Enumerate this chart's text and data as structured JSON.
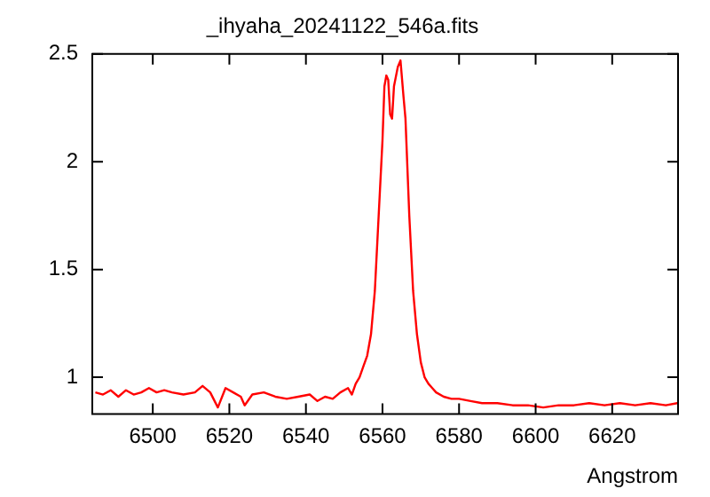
{
  "chart_data": {
    "type": "line",
    "title": "_ihyaha_20241122_546a.fits",
    "xlabel": "Angstrom",
    "series": [
      {
        "color": "#ff0000",
        "x": [
          6485,
          6487,
          6489,
          6491,
          6493,
          6495,
          6497,
          6499,
          6501,
          6503,
          6505,
          6508,
          6511,
          6513,
          6515,
          6517,
          6519,
          6521,
          6523,
          6524,
          6526,
          6529,
          6532,
          6535,
          6538,
          6541,
          6543,
          6545,
          6547,
          6549,
          6551,
          6552,
          6553,
          6554,
          6555,
          6556,
          6557,
          6558,
          6559,
          6560,
          6560.5,
          6561,
          6561.5,
          6562,
          6562.5,
          6563,
          6564,
          6564.7,
          6565.5,
          6566,
          6567,
          6568,
          6569,
          6570,
          6571,
          6572,
          6573,
          6574,
          6576,
          6578,
          6580,
          6583,
          6586,
          6590,
          6594,
          6598,
          6602,
          6606,
          6610,
          6614,
          6618,
          6622,
          6626,
          6630,
          6634,
          6637
        ],
        "values": [
          0.93,
          0.92,
          0.94,
          0.91,
          0.94,
          0.92,
          0.93,
          0.95,
          0.93,
          0.94,
          0.93,
          0.92,
          0.93,
          0.96,
          0.93,
          0.86,
          0.95,
          0.93,
          0.91,
          0.87,
          0.92,
          0.93,
          0.91,
          0.9,
          0.91,
          0.92,
          0.89,
          0.91,
          0.9,
          0.93,
          0.95,
          0.92,
          0.97,
          1.0,
          1.05,
          1.1,
          1.2,
          1.4,
          1.75,
          2.1,
          2.35,
          2.4,
          2.38,
          2.22,
          2.2,
          2.35,
          2.44,
          2.47,
          2.3,
          2.2,
          1.75,
          1.4,
          1.2,
          1.07,
          1.0,
          0.97,
          0.95,
          0.93,
          0.91,
          0.9,
          0.9,
          0.89,
          0.88,
          0.88,
          0.87,
          0.87,
          0.86,
          0.87,
          0.87,
          0.88,
          0.87,
          0.88,
          0.87,
          0.88,
          0.87,
          0.88
        ]
      }
    ],
    "xlim": [
      6484.2,
      6637.2
    ],
    "xticks": [
      6500,
      6520,
      6540,
      6560,
      6580,
      6600,
      6620
    ],
    "ylim": [
      0.83,
      2.5
    ],
    "yticks": [
      1,
      1.5,
      2,
      2.5
    ],
    "grid": false,
    "legend": false,
    "marker": "none",
    "line_style": "solid"
  }
}
